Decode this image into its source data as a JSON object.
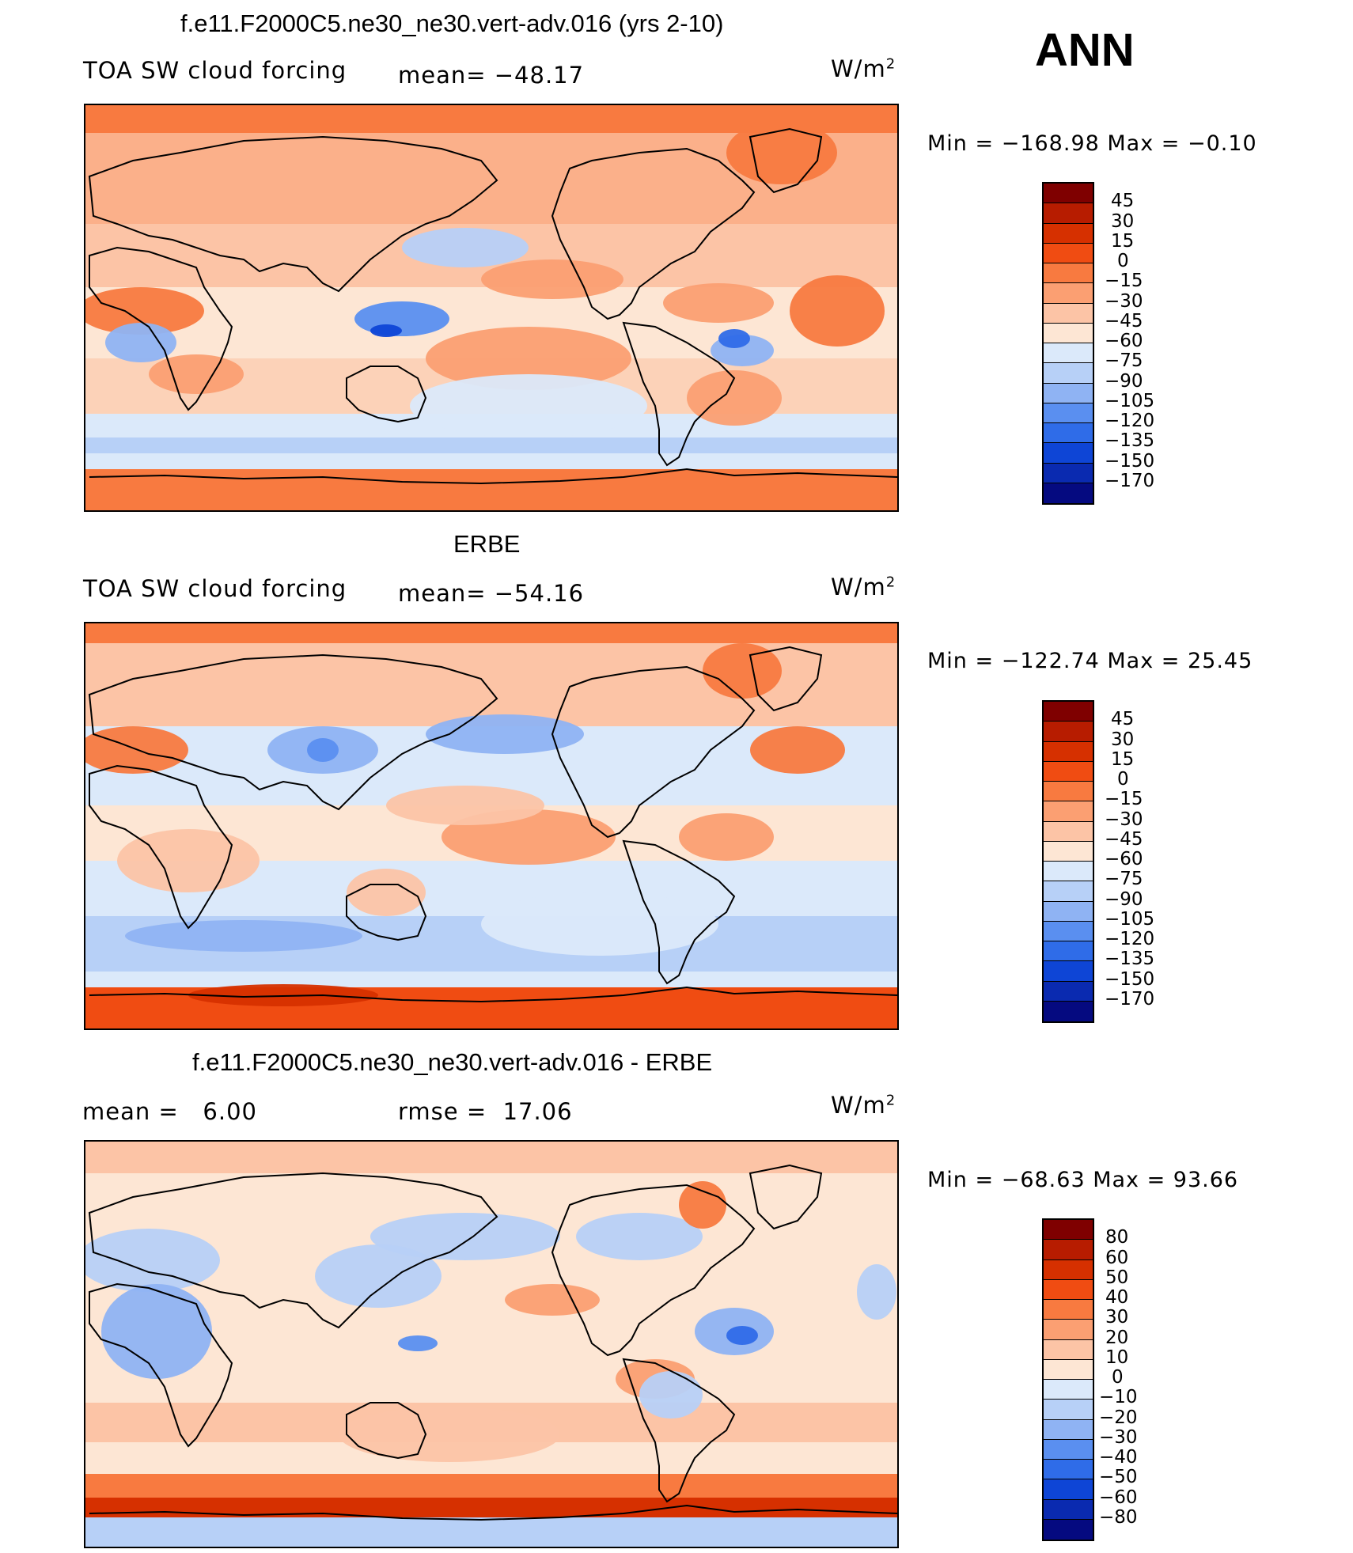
{
  "season": "ANN",
  "panels": [
    {
      "title": "f.e11.F2000C5.ne30_ne30.vert-adv.016 (yrs 2-10)",
      "left_label": "TOA SW cloud forcing",
      "center_label": "mean= −48.17",
      "units": "W/m",
      "units_sup": "2",
      "minmax": "Min = −168.98 Max = −0.10",
      "colorbar_labels": [
        "45",
        "30",
        "15",
        "0",
        "−15",
        "−30",
        "−45",
        "−60",
        "−75",
        "−90",
        "−105",
        "−120",
        "−135",
        "−150",
        "−170"
      ],
      "colorbar_colors": [
        "#7f0000",
        "#b71c00",
        "#d63000",
        "#f04c12",
        "#f87a40",
        "#fb9f72",
        "#fcc4a6",
        "#fde6d4",
        "#dbe9fa",
        "#b7d0f7",
        "#8fb3f3",
        "#5a8ff0",
        "#2f6ce8",
        "#0e45d6",
        "#0a2ab0",
        "#050a80"
      ],
      "map_style": "model"
    },
    {
      "title": "ERBE",
      "left_label": "TOA SW cloud forcing",
      "center_label": "mean= −54.16",
      "units": "W/m",
      "units_sup": "2",
      "minmax": "Min = −122.74 Max = 25.45",
      "colorbar_labels": [
        "45",
        "30",
        "15",
        "0",
        "−15",
        "−30",
        "−45",
        "−60",
        "−75",
        "−90",
        "−105",
        "−120",
        "−135",
        "−150",
        "−170"
      ],
      "colorbar_colors": [
        "#7f0000",
        "#b71c00",
        "#d63000",
        "#f04c12",
        "#f87a40",
        "#fb9f72",
        "#fcc4a6",
        "#fde6d4",
        "#dbe9fa",
        "#b7d0f7",
        "#8fb3f3",
        "#5a8ff0",
        "#2f6ce8",
        "#0e45d6",
        "#0a2ab0",
        "#050a80"
      ],
      "map_style": "obs"
    },
    {
      "title": "f.e11.F2000C5.ne30_ne30.vert-adv.016 - ERBE",
      "left_label": "mean =   6.00",
      "center_label": "rmse =  17.06",
      "units": "W/m",
      "units_sup": "2",
      "minmax": "Min = −68.63 Max = 93.66",
      "colorbar_labels": [
        "80",
        "60",
        "50",
        "40",
        "30",
        "20",
        "10",
        "0",
        "−10",
        "−20",
        "−30",
        "−40",
        "−50",
        "−60",
        "−80"
      ],
      "colorbar_colors": [
        "#7f0000",
        "#b71c00",
        "#d63000",
        "#f04c12",
        "#f87a40",
        "#fb9f72",
        "#fcc4a6",
        "#fde6d4",
        "#dbe9fa",
        "#b7d0f7",
        "#8fb3f3",
        "#5a8ff0",
        "#2f6ce8",
        "#0e45d6",
        "#0a2ab0",
        "#050a80"
      ],
      "map_style": "diff"
    }
  ]
}
